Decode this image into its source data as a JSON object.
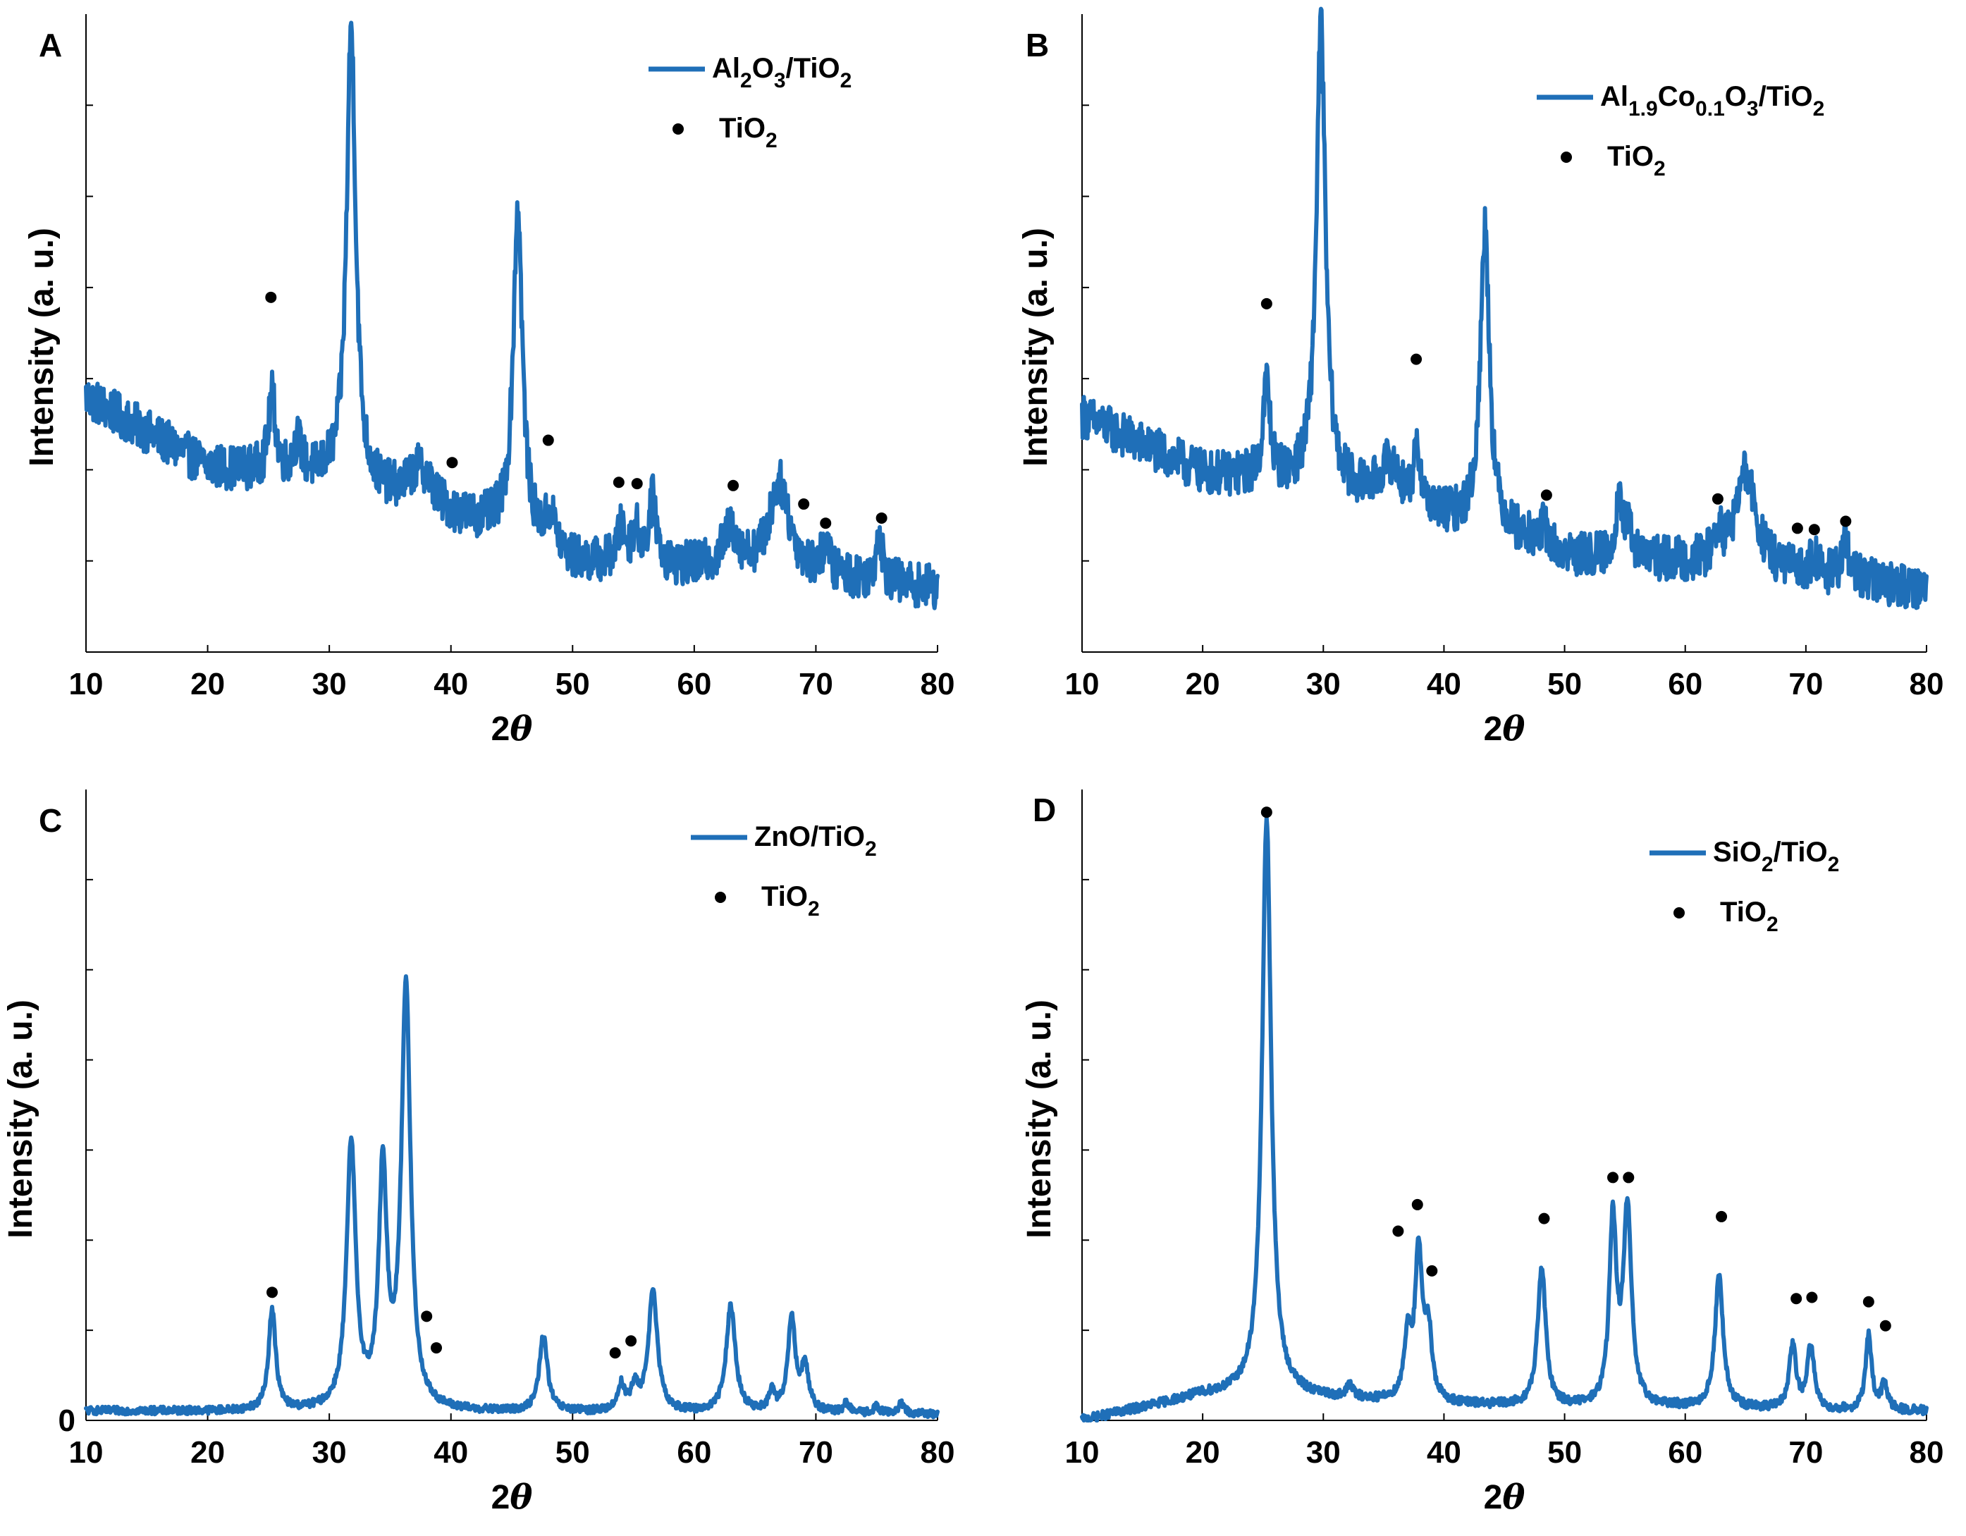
{
  "chart_data": [
    {
      "panel": "A",
      "type": "line",
      "xlabel": "2θ",
      "ylabel": "Intensity (a. u.)",
      "xlim": [
        10,
        80
      ],
      "ylim": [
        0,
        100
      ],
      "xticks": [
        10,
        20,
        30,
        40,
        50,
        60,
        70,
        80
      ],
      "yticks": [],
      "series": [
        {
          "name": "Al2O3/TiO2",
          "name_parts": [
            "Al",
            "2",
            "O",
            "3",
            "/TiO",
            "2"
          ],
          "color": "#1f6fb8",
          "baseline": [
            [
              10,
              40
            ],
            [
              20,
              29
            ],
            [
              30,
              27
            ],
            [
              40,
              21
            ],
            [
              45,
              19
            ],
            [
              50,
              14
            ],
            [
              60,
              13
            ],
            [
              70,
              12
            ],
            [
              80,
              10
            ]
          ],
          "noise": 3.5,
          "peaks": [
            [
              25.3,
              12,
              0.35
            ],
            [
              27.4,
              5,
              0.4
            ],
            [
              31.8,
              72,
              0.45
            ],
            [
              37.5,
              6,
              1.2
            ],
            [
              45.5,
              51,
              0.45
            ],
            [
              48.2,
              5,
              0.5
            ],
            [
              54.0,
              5,
              0.4
            ],
            [
              55.2,
              5,
              0.4
            ],
            [
              56.6,
              10,
              0.4
            ],
            [
              63.0,
              6,
              0.8
            ],
            [
              67.0,
              14,
              1.0
            ],
            [
              70.8,
              4,
              0.4
            ],
            [
              75.2,
              8,
              0.3
            ]
          ]
        }
      ],
      "markers": {
        "name": "TiO2",
        "name_parts": [
          "TiO",
          "2"
        ],
        "points": [
          [
            25.2,
            55.6
          ],
          [
            40.1,
            29.7
          ],
          [
            48.0,
            33.2
          ],
          [
            53.8,
            26.6
          ],
          [
            55.3,
            26.4
          ],
          [
            63.2,
            26.1
          ],
          [
            69.0,
            23.2
          ],
          [
            70.8,
            20.2
          ],
          [
            75.4,
            21.0
          ]
        ]
      },
      "legend": "top-right"
    },
    {
      "panel": "B",
      "type": "line",
      "xlabel": "2θ",
      "ylabel": "Intensity (a. u.)",
      "xlim": [
        10,
        80
      ],
      "ylim": [
        0,
        100
      ],
      "xticks": [
        10,
        20,
        30,
        40,
        50,
        60,
        70,
        80
      ],
      "yticks": [],
      "series": [
        {
          "name": "Al1.9Co0.1O3/TiO2",
          "name_parts": [
            "Al",
            "1.9",
            "Co",
            "0.1",
            "O",
            "3",
            "/TiO",
            "2"
          ],
          "color": "#1f6fb8",
          "baseline": [
            [
              10,
              37
            ],
            [
              20,
              28
            ],
            [
              30,
              26
            ],
            [
              40,
              21
            ],
            [
              45,
              19
            ],
            [
              50,
              15
            ],
            [
              60,
              14
            ],
            [
              70,
              12
            ],
            [
              80,
              10
            ]
          ],
          "noise": 3.5,
          "peaks": [
            [
              25.3,
              15,
              0.35
            ],
            [
              29.8,
              72,
              0.45
            ],
            [
              35.5,
              6,
              1.0
            ],
            [
              37.8,
              8,
              0.4
            ],
            [
              43.4,
              47,
              0.45
            ],
            [
              48.3,
              3,
              0.4
            ],
            [
              54.5,
              10,
              0.3
            ],
            [
              55.3,
              4,
              0.4
            ],
            [
              62.7,
              4,
              0.4
            ],
            [
              65.0,
              15,
              1.0
            ],
            [
              70.7,
              3,
              0.4
            ],
            [
              73.3,
              6,
              0.35
            ]
          ]
        }
      ],
      "markers": {
        "name": "TiO2",
        "name_parts": [
          "TiO",
          "2"
        ],
        "points": [
          [
            25.3,
            54.6
          ],
          [
            37.7,
            45.9
          ],
          [
            48.5,
            24.6
          ],
          [
            62.7,
            24.0
          ],
          [
            69.3,
            19.4
          ],
          [
            70.7,
            19.2
          ],
          [
            73.3,
            20.5
          ]
        ]
      },
      "legend": "top-right"
    },
    {
      "panel": "C",
      "type": "line",
      "xlabel": "2θ",
      "ylabel": "Intensity (a. u.)",
      "xlim": [
        10,
        80
      ],
      "ylim": [
        0,
        100
      ],
      "xticks": [
        10,
        20,
        30,
        40,
        50,
        60,
        70,
        80
      ],
      "yticks": [
        0
      ],
      "series": [
        {
          "name": "ZnO/TiO2",
          "name_parts": [
            "ZnO/TiO",
            "2"
          ],
          "color": "#1f6fb8",
          "baseline": [
            [
              10,
              1.5
            ],
            [
              80,
              1.0
            ]
          ],
          "noise": 0.6,
          "peaks": [
            [
              25.3,
              16,
              0.35
            ],
            [
              31.8,
              42,
              0.45
            ],
            [
              34.4,
              37,
              0.4
            ],
            [
              36.3,
              67,
              0.45
            ],
            [
              47.6,
              12,
              0.4
            ],
            [
              54.0,
              4,
              0.35
            ],
            [
              55.1,
              3.5,
              0.35
            ],
            [
              56.6,
              19,
              0.45
            ],
            [
              63.0,
              17,
              0.45
            ],
            [
              66.4,
              3,
              0.3
            ],
            [
              68.0,
              15,
              0.35
            ],
            [
              69.1,
              7,
              0.4
            ],
            [
              72.5,
              1.5,
              0.3
            ],
            [
              75.0,
              1,
              0.3
            ],
            [
              77.0,
              1.5,
              0.3
            ]
          ]
        }
      ],
      "markers": {
        "name": "TiO2",
        "name_parts": [
          "TiO",
          "2"
        ],
        "points": [
          [
            25.3,
            20.3
          ],
          [
            38.0,
            16.5
          ],
          [
            38.8,
            11.5
          ],
          [
            53.5,
            10.7
          ],
          [
            54.8,
            12.6
          ]
        ]
      },
      "legend": "top-right"
    },
    {
      "panel": "D",
      "type": "line",
      "xlabel": "2θ",
      "ylabel": "Intensity (a. u.)",
      "xlim": [
        10,
        80
      ],
      "ylim": [
        0,
        100
      ],
      "xticks": [
        10,
        20,
        30,
        40,
        50,
        60,
        70,
        80
      ],
      "yticks": [],
      "series": [
        {
          "name": "SiO2/TiO2",
          "name_parts": [
            "SiO",
            "2",
            "/TiO",
            "2"
          ],
          "color": "#1f6fb8",
          "baseline": [
            [
              10,
              0
            ],
            [
              20,
              4
            ],
            [
              25,
              4.5
            ],
            [
              30,
              3.5
            ],
            [
              40,
              2.5
            ],
            [
              50,
              2
            ],
            [
              60,
              2
            ],
            [
              70,
              1.5
            ],
            [
              80,
              1.5
            ]
          ],
          "noise": 0.7,
          "peaks": [
            [
              25.3,
              91,
              0.45
            ],
            [
              32.2,
              2,
              0.3
            ],
            [
              37.0,
              10,
              0.35
            ],
            [
              37.9,
              23,
              0.35
            ],
            [
              38.7,
              11,
              0.35
            ],
            [
              48.1,
              22,
              0.4
            ],
            [
              54.0,
              29,
              0.35
            ],
            [
              55.2,
              31,
              0.4
            ],
            [
              62.8,
              21,
              0.4
            ],
            [
              68.9,
              10,
              0.35
            ],
            [
              70.4,
              10,
              0.35
            ],
            [
              75.2,
              12,
              0.3
            ],
            [
              76.5,
              4,
              0.3
            ]
          ]
        }
      ],
      "markers": {
        "name": "TiO2",
        "name_parts": [
          "TiO",
          "2"
        ],
        "points": [
          [
            25.3,
            96.4
          ],
          [
            36.2,
            30.0
          ],
          [
            37.8,
            34.2
          ],
          [
            39.0,
            23.7
          ],
          [
            48.3,
            32.0
          ],
          [
            54.0,
            38.5
          ],
          [
            55.3,
            38.5
          ],
          [
            63.0,
            32.3
          ],
          [
            69.2,
            19.3
          ],
          [
            70.5,
            19.5
          ],
          [
            75.2,
            18.8
          ],
          [
            76.6,
            15.0
          ]
        ]
      },
      "legend": "top-right"
    }
  ]
}
